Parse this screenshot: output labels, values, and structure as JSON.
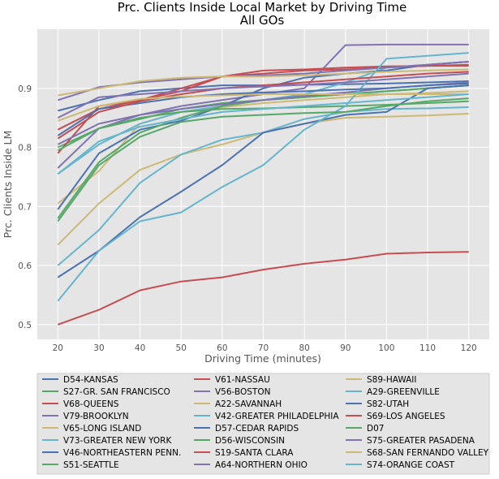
{
  "chart_data": {
    "type": "line",
    "title": "Prc. Clients Inside Local Market by Driving Time",
    "subtitle": "All GOs",
    "xlabel": "Driving Time (minutes)",
    "ylabel": "Prc. Clients Inside LM",
    "x": [
      20,
      30,
      40,
      50,
      60,
      70,
      80,
      90,
      100,
      110,
      120
    ],
    "xlim": [
      15,
      125
    ],
    "ylim": [
      0.475,
      1.0
    ],
    "yticks": [
      0.5,
      0.6,
      0.7,
      0.8,
      0.9
    ],
    "xticks": [
      20,
      30,
      40,
      50,
      60,
      70,
      80,
      90,
      100,
      110,
      120
    ],
    "grid": true,
    "legend_position": "below",
    "series": [
      {
        "name": "D54-KANSAS",
        "color": "#4c72b0",
        "values": [
          0.862,
          0.88,
          0.895,
          0.9,
          0.905,
          0.905,
          0.906,
          0.907,
          0.908,
          0.91,
          0.912
        ]
      },
      {
        "name": "S27-GR. SAN FRANCISCO",
        "color": "#55a868",
        "values": [
          0.8,
          0.832,
          0.848,
          0.865,
          0.875,
          0.88,
          0.885,
          0.89,
          0.895,
          0.9,
          0.905
        ]
      },
      {
        "name": "V68-QUEENS",
        "color": "#c44e52",
        "values": [
          0.79,
          0.87,
          0.88,
          0.9,
          0.92,
          0.925,
          0.93,
          0.932,
          0.935,
          0.938,
          0.94
        ]
      },
      {
        "name": "V79-BROOKLYN",
        "color": "#8172b2",
        "values": [
          0.765,
          0.832,
          0.855,
          0.87,
          0.88,
          0.89,
          0.9,
          0.973,
          0.974,
          0.974,
          0.974
        ]
      },
      {
        "name": "V65-LONG ISLAND",
        "color": "#ccb974",
        "values": [
          0.705,
          0.76,
          0.84,
          0.86,
          0.868,
          0.875,
          0.88,
          0.885,
          0.89,
          0.892,
          0.895
        ]
      },
      {
        "name": "V73-GREATER NEW YORK",
        "color": "#64b5cd",
        "values": [
          0.755,
          0.805,
          0.84,
          0.86,
          0.87,
          0.88,
          0.89,
          0.91,
          0.935,
          0.94,
          0.945
        ]
      },
      {
        "name": "V46-NORTHEASTERN PENN.",
        "color": "#4c72b0",
        "values": [
          0.695,
          0.79,
          0.83,
          0.845,
          0.87,
          0.9,
          0.918,
          0.925,
          0.93,
          0.94,
          0.945
        ]
      },
      {
        "name": "S51-SEATTLE",
        "color": "#55a868",
        "values": [
          0.68,
          0.775,
          0.825,
          0.85,
          0.87,
          0.88,
          0.885,
          0.89,
          0.895,
          0.9,
          0.905
        ]
      },
      {
        "name": "V61-NASSAU",
        "color": "#c44e52",
        "values": [
          0.83,
          0.865,
          0.88,
          0.895,
          0.92,
          0.93,
          0.932,
          0.935,
          0.937,
          0.938,
          0.938
        ]
      },
      {
        "name": "V56-BOSTON",
        "color": "#8172b2",
        "values": [
          0.805,
          0.84,
          0.855,
          0.865,
          0.873,
          0.88,
          0.887,
          0.893,
          0.9,
          0.905,
          0.91
        ]
      },
      {
        "name": "A22-SAVANNAH",
        "color": "#ccb974",
        "values": [
          0.635,
          0.705,
          0.762,
          0.788,
          0.805,
          0.825,
          0.84,
          0.85,
          0.852,
          0.854,
          0.857
        ]
      },
      {
        "name": "V42-GREATER PHILADELPHIA",
        "color": "#64b5cd",
        "values": [
          0.6,
          0.66,
          0.74,
          0.788,
          0.813,
          0.825,
          0.848,
          0.86,
          0.865,
          0.866,
          0.868
        ]
      },
      {
        "name": "D57-CEDAR RAPIDS",
        "color": "#4c72b0",
        "values": [
          0.58,
          0.625,
          0.682,
          0.725,
          0.77,
          0.825,
          0.84,
          0.855,
          0.86,
          0.9,
          0.905
        ]
      },
      {
        "name": "D56-WISCONSIN",
        "color": "#55a868",
        "values": [
          0.795,
          0.832,
          0.85,
          0.86,
          0.865,
          0.866,
          0.868,
          0.87,
          0.872,
          0.875,
          0.878
        ]
      },
      {
        "name": "S19-SANTA CLARA",
        "color": "#c44e52",
        "values": [
          0.5,
          0.525,
          0.558,
          0.573,
          0.58,
          0.593,
          0.603,
          0.61,
          0.62,
          0.622,
          0.623
        ]
      },
      {
        "name": "A64-NORTHERN OHIO",
        "color": "#8172b2",
        "values": [
          0.88,
          0.902,
          0.91,
          0.915,
          0.92,
          0.922,
          0.925,
          0.93,
          0.935,
          0.94,
          0.945
        ]
      },
      {
        "name": "S89-HAWAII",
        "color": "#ccb974",
        "values": [
          0.888,
          0.9,
          0.912,
          0.918,
          0.92,
          0.92,
          0.922,
          0.925,
          0.928,
          0.93,
          0.932
        ]
      },
      {
        "name": "A29-GREENVILLE",
        "color": "#64b5cd",
        "values": [
          0.54,
          0.625,
          0.675,
          0.69,
          0.733,
          0.77,
          0.83,
          0.87,
          0.95,
          0.955,
          0.96
        ]
      },
      {
        "name": "S82-UTAH",
        "color": "#4c72b0",
        "values": [
          0.82,
          0.865,
          0.875,
          0.885,
          0.89,
          0.893,
          0.895,
          0.898,
          0.9,
          0.905,
          0.908
        ]
      },
      {
        "name": "S69-LOS ANGELES",
        "color": "#c44e52",
        "values": [
          0.815,
          0.86,
          0.878,
          0.89,
          0.9,
          0.905,
          0.91,
          0.915,
          0.92,
          0.925,
          0.928
        ]
      },
      {
        "name": "D07",
        "color": "#55a868",
        "values": [
          0.675,
          0.77,
          0.818,
          0.843,
          0.852,
          0.855,
          0.858,
          0.86,
          0.87,
          0.878,
          0.883
        ]
      },
      {
        "name": "S75-GREATER PASADENA",
        "color": "#8172b2",
        "values": [
          0.85,
          0.885,
          0.89,
          0.895,
          0.9,
          0.903,
          0.906,
          0.91,
          0.915,
          0.92,
          0.925
        ]
      },
      {
        "name": "S68-SAN FERNANDO VALLEY",
        "color": "#ccb974",
        "values": [
          0.845,
          0.87,
          0.882,
          0.886,
          0.888,
          0.89,
          0.89,
          0.89,
          0.89,
          0.89,
          0.89
        ]
      },
      {
        "name": "S74-ORANGE COAST",
        "color": "#64b5cd",
        "values": [
          0.755,
          0.81,
          0.835,
          0.848,
          0.86,
          0.865,
          0.87,
          0.875,
          0.88,
          0.885,
          0.89
        ]
      }
    ]
  }
}
